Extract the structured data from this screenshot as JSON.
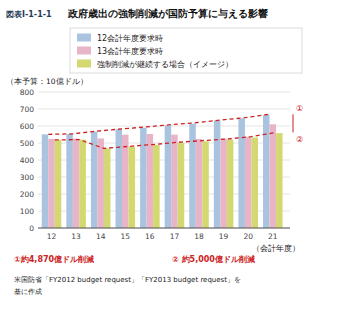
{
  "chart_data": {
    "type": "bar",
    "subtitle": "図表I-1-1-1",
    "title": "政府歳出の強制削減が国防予算に与える影響",
    "categories": [
      "12",
      "13",
      "14",
      "15",
      "16",
      "17",
      "18",
      "19",
      "20",
      "21"
    ],
    "series": [
      {
        "name": "12会計年度要求時",
        "type": "bar",
        "color": "#aac4df",
        "values": [
          551,
          553,
          567,
          581,
          590,
          604,
          614,
          633,
          645,
          664
        ]
      },
      {
        "name": "13会計年度要求時",
        "type": "bar",
        "color": "#e8b4c8",
        "values": [
          524,
          526,
          527,
          549,
          553,
          549,
          524,
          526,
          537,
          610
        ]
      },
      {
        "name": "強制削減が継続する場合（イメージ）",
        "type": "bar",
        "color": "#d4d870",
        "values": [
          518,
          520,
          468,
          479,
          488,
          501,
          510,
          519,
          532,
          558
        ]
      },
      {
        "name": "①",
        "type": "line",
        "line_style": "dashed",
        "color": "#cc2222",
        "values": [
          551,
          554,
          570,
          583,
          595,
          608,
          619,
          635,
          649,
          669
        ]
      },
      {
        "name": "②",
        "type": "line",
        "line_style": "dashed",
        "color": "#cc2222",
        "values": [
          518,
          520,
          468,
          480,
          491,
          504,
          514,
          523,
          538,
          562
        ]
      }
    ],
    "ylabel": "（本予算：10億ドル）",
    "xlabel": "（会計年度）",
    "ylim": [
      0,
      800
    ],
    "yticks": [
      0,
      100,
      200,
      300,
      400,
      500,
      600,
      700,
      800
    ],
    "grid": true,
    "legend": "top",
    "annotations": [
      "①約4,870億ドル削減",
      "② 約5,000億ドル削減",
      "米国防省「FY2012 budget request」「FY2013 budget request」を",
      "基に作成"
    ]
  }
}
